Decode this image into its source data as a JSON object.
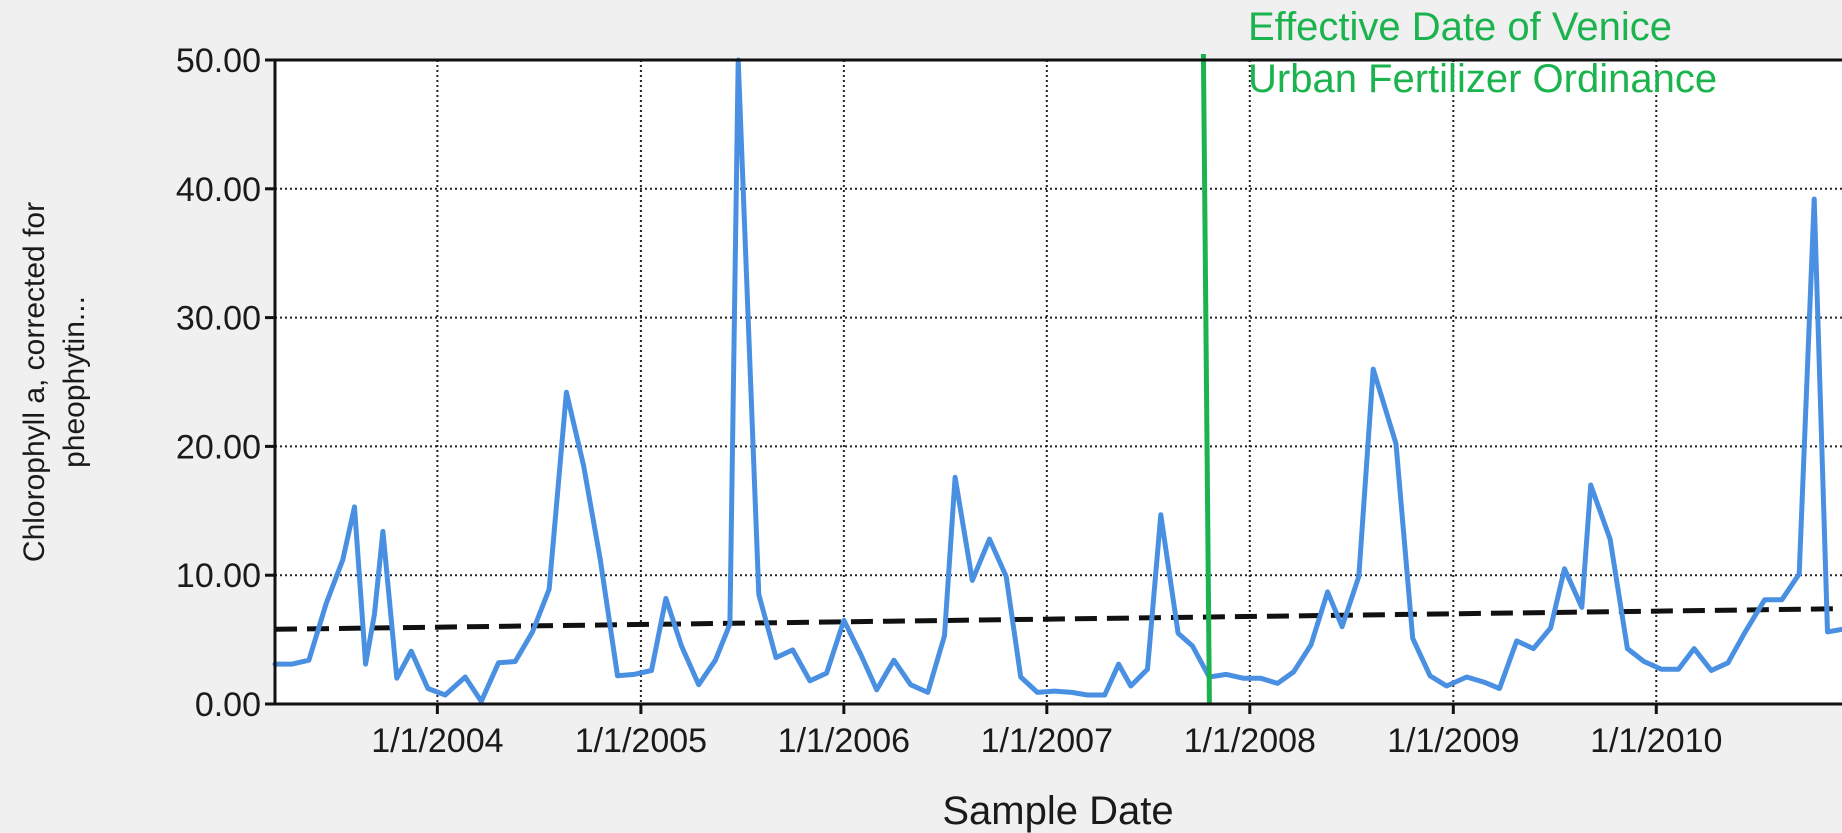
{
  "chart_data": {
    "type": "line",
    "xlabel": "Sample Date",
    "ylabel_line1": "Chlorophyll a, corrected for",
    "ylabel_line2": "pheophytin...",
    "x_tick_labels": [
      "1/1/2004",
      "1/1/2005",
      "1/1/2006",
      "1/1/2007",
      "1/1/2008",
      "1/1/2009",
      "1/1/2010"
    ],
    "y_tick_labels": [
      "0.00",
      "10.00",
      "20.00",
      "30.00",
      "40.00",
      "50.00"
    ],
    "ylim": [
      0,
      50
    ],
    "xlim": [
      "2003-03-15",
      "2010-12-01"
    ],
    "grid": true,
    "grid_style": "dotted",
    "annotation": {
      "text_line1": "Effective Date of Venice",
      "text_line2": "Urban Fertilizer Ordinance",
      "date": "2007-10-15",
      "color": "#1bb34d"
    },
    "trend": {
      "start_value": 5.8,
      "end_value": 7.4,
      "color": "#111111"
    },
    "series": [
      {
        "color": "#4a90e2",
        "points": [
          [
            "2003-03-15",
            3.1
          ],
          [
            "2003-04-15",
            3.1
          ],
          [
            "2003-05-15",
            3.4
          ],
          [
            "2003-06-15",
            7.8
          ],
          [
            "2003-07-15",
            11.2
          ],
          [
            "2003-08-05",
            15.3
          ],
          [
            "2003-08-25",
            3.1
          ],
          [
            "2003-09-10",
            7.0
          ],
          [
            "2003-09-25",
            13.4
          ],
          [
            "2003-10-20",
            2.0
          ],
          [
            "2003-11-15",
            4.1
          ],
          [
            "2003-12-15",
            1.2
          ],
          [
            "2004-01-15",
            0.7
          ],
          [
            "2004-02-20",
            2.1
          ],
          [
            "2004-03-20",
            0.2
          ],
          [
            "2004-04-20",
            3.2
          ],
          [
            "2004-05-20",
            3.3
          ],
          [
            "2004-06-20",
            5.6
          ],
          [
            "2004-07-20",
            8.9
          ],
          [
            "2004-08-20",
            24.2
          ],
          [
            "2004-09-20",
            18.5
          ],
          [
            "2004-10-20",
            11.2
          ],
          [
            "2004-11-20",
            2.2
          ],
          [
            "2004-12-20",
            2.3
          ],
          [
            "2005-01-20",
            2.6
          ],
          [
            "2005-02-15",
            8.2
          ],
          [
            "2005-03-15",
            4.5
          ],
          [
            "2005-04-15",
            1.5
          ],
          [
            "2005-05-15",
            3.4
          ],
          [
            "2005-06-10",
            6.2
          ],
          [
            "2005-06-25",
            50.0
          ],
          [
            "2005-08-01",
            8.5
          ],
          [
            "2005-09-01",
            3.6
          ],
          [
            "2005-10-01",
            4.2
          ],
          [
            "2005-11-01",
            1.8
          ],
          [
            "2005-12-01",
            2.4
          ],
          [
            "2006-01-01",
            6.5
          ],
          [
            "2006-02-01",
            3.8
          ],
          [
            "2006-03-01",
            1.1
          ],
          [
            "2006-04-01",
            3.4
          ],
          [
            "2006-05-01",
            1.5
          ],
          [
            "2006-06-01",
            0.9
          ],
          [
            "2006-07-01",
            5.3
          ],
          [
            "2006-07-20",
            17.6
          ],
          [
            "2006-08-20",
            9.6
          ],
          [
            "2006-09-20",
            12.8
          ],
          [
            "2006-10-20",
            9.9
          ],
          [
            "2006-11-15",
            2.1
          ],
          [
            "2006-12-15",
            0.9
          ],
          [
            "2007-01-15",
            1.0
          ],
          [
            "2007-02-15",
            0.9
          ],
          [
            "2007-03-15",
            0.7
          ],
          [
            "2007-04-15",
            0.7
          ],
          [
            "2007-05-10",
            3.1
          ],
          [
            "2007-06-01",
            1.4
          ],
          [
            "2007-07-01",
            2.7
          ],
          [
            "2007-07-25",
            14.7
          ],
          [
            "2007-08-25",
            5.5
          ],
          [
            "2007-09-20",
            4.5
          ],
          [
            "2007-10-20",
            2.1
          ],
          [
            "2007-11-20",
            2.3
          ],
          [
            "2007-12-20",
            2.0
          ],
          [
            "2008-01-20",
            2.0
          ],
          [
            "2008-02-20",
            1.6
          ],
          [
            "2008-03-20",
            2.5
          ],
          [
            "2008-04-20",
            4.6
          ],
          [
            "2008-05-20",
            8.7
          ],
          [
            "2008-06-15",
            6.0
          ],
          [
            "2008-07-15",
            9.9
          ],
          [
            "2008-08-10",
            26.0
          ],
          [
            "2008-09-20",
            20.2
          ],
          [
            "2008-10-20",
            5.1
          ],
          [
            "2008-11-20",
            2.2
          ],
          [
            "2008-12-20",
            1.4
          ],
          [
            "2009-01-25",
            2.1
          ],
          [
            "2009-02-25",
            1.7
          ],
          [
            "2009-03-25",
            1.2
          ],
          [
            "2009-04-25",
            4.9
          ],
          [
            "2009-05-25",
            4.3
          ],
          [
            "2009-06-25",
            5.9
          ],
          [
            "2009-07-20",
            10.5
          ],
          [
            "2009-08-20",
            7.5
          ],
          [
            "2009-09-05",
            17.0
          ],
          [
            "2009-10-10",
            12.8
          ],
          [
            "2009-11-10",
            4.3
          ],
          [
            "2009-12-10",
            3.3
          ],
          [
            "2010-01-10",
            2.7
          ],
          [
            "2010-02-10",
            2.7
          ],
          [
            "2010-03-10",
            4.3
          ],
          [
            "2010-04-10",
            2.6
          ],
          [
            "2010-05-10",
            3.2
          ],
          [
            "2010-06-10",
            5.6
          ],
          [
            "2010-07-15",
            8.1
          ],
          [
            "2010-08-15",
            8.1
          ],
          [
            "2010-09-15",
            10.1
          ],
          [
            "2010-10-12",
            39.2
          ],
          [
            "2010-11-05",
            5.6
          ],
          [
            "2010-12-01",
            5.8
          ]
        ]
      }
    ]
  }
}
